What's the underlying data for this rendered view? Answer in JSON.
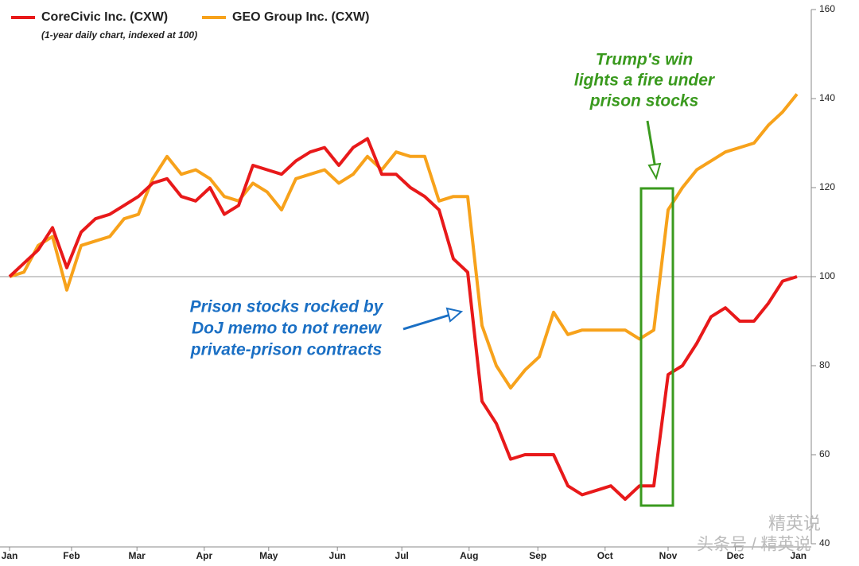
{
  "chart_data": {
    "type": "line",
    "subtitle": "(1-year daily chart, indexed at 100)",
    "xlim": [
      0,
      55.5
    ],
    "xticks": [
      {
        "value": 0,
        "label": "Jan"
      },
      {
        "value": 4.33,
        "label": "Feb"
      },
      {
        "value": 8.9,
        "label": "Mar"
      },
      {
        "value": 13.6,
        "label": "Apr"
      },
      {
        "value": 18.1,
        "label": "May"
      },
      {
        "value": 22.9,
        "label": "Jun"
      },
      {
        "value": 27.4,
        "label": "Jul"
      },
      {
        "value": 32.1,
        "label": "Aug"
      },
      {
        "value": 36.9,
        "label": "Sep"
      },
      {
        "value": 41.6,
        "label": "Oct"
      },
      {
        "value": 46,
        "label": "Nov"
      },
      {
        "value": 50.7,
        "label": "Dec"
      },
      {
        "value": 55.1,
        "label": "Jan"
      }
    ],
    "ylim": [
      40,
      160
    ],
    "yticks": [
      40,
      60,
      80,
      100,
      120,
      140,
      160
    ],
    "reference_line": 100,
    "series": [
      {
        "name": "CoreCivic Inc. (CXW)",
        "color": "#e8191a",
        "values": [
          100,
          103,
          106,
          111,
          102,
          110,
          113,
          114,
          116,
          118,
          121,
          122,
          118,
          117,
          120,
          114,
          116,
          125,
          124,
          123,
          126,
          128,
          129,
          125,
          129,
          131,
          123,
          123,
          120,
          118,
          115,
          104,
          101,
          72,
          67,
          59,
          60,
          60,
          60,
          53,
          51,
          52,
          53,
          50,
          53,
          53,
          78,
          80,
          85,
          91,
          93,
          90,
          90,
          94,
          99,
          100
        ]
      },
      {
        "name": "GEO Group Inc. (CXW)",
        "color": "#f7a21b",
        "values": [
          100,
          101,
          107,
          109,
          97,
          107,
          108,
          109,
          113,
          114,
          122,
          127,
          123,
          124,
          122,
          118,
          117,
          121,
          119,
          115,
          122,
          123,
          124,
          121,
          123,
          127,
          124,
          128,
          127,
          127,
          117,
          118,
          118,
          89,
          80,
          75,
          79,
          82,
          92,
          87,
          88,
          88,
          88,
          88,
          86,
          88,
          115,
          120,
          124,
          126,
          128,
          129,
          130,
          134,
          137,
          141
        ]
      }
    ],
    "annotations": [
      {
        "text": [
          "Trump's win",
          "lights a fire under",
          "prison stocks"
        ],
        "color": "#3a9a1e"
      },
      {
        "text": [
          "Prison stocks rocked by",
          "DoJ memo to not renew",
          "private-prison contracts"
        ],
        "color": "#1a6fc4"
      }
    ],
    "watermark": [
      "精英说",
      "头条号 / 精英说"
    ]
  }
}
